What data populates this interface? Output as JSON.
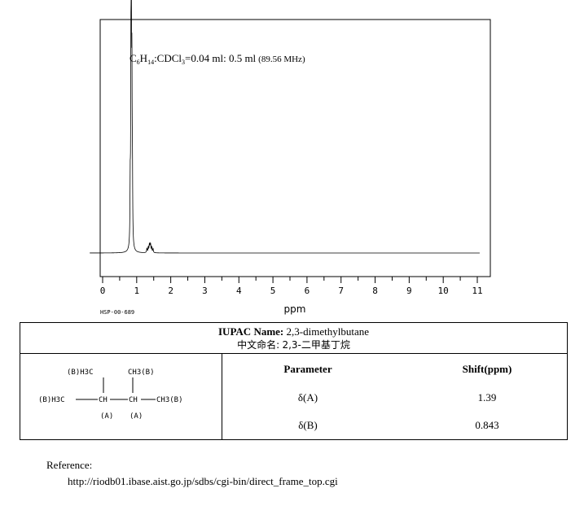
{
  "chart_data": {
    "type": "line",
    "title": "",
    "conditions": {
      "solute": "C6H14",
      "solute_base": "C",
      "solute_sub1": "6",
      "solute_mid": "H",
      "solute_sub2": "14",
      "solvent_text": ":CDCl",
      "solvent_sub": "3",
      "ratio_text": "=0.04 ml: 0.5 ml",
      "freq_text": "(89.56 MHz)"
    },
    "xlabel": "ppm",
    "ylabel": "",
    "xlim": [
      11,
      0
    ],
    "x_reversed": true,
    "xticks": [
      "11",
      "10",
      "9",
      "8",
      "7",
      "6",
      "5",
      "4",
      "3",
      "2",
      "1",
      "0"
    ],
    "baseline": 0.0,
    "ylim": [
      0,
      1.0
    ],
    "grid": false,
    "peaks": [
      {
        "shift": 0.843,
        "intensity": 1.0,
        "width": 0.02
      },
      {
        "shift": 0.83,
        "intensity": 0.68,
        "width": 0.015
      },
      {
        "shift": 0.86,
        "intensity": 0.67,
        "width": 0.015
      },
      {
        "shift": 0.875,
        "intensity": 0.3,
        "width": 0.015
      },
      {
        "shift": 0.81,
        "intensity": 0.25,
        "width": 0.015
      },
      {
        "shift": 1.3,
        "intensity": 0.02,
        "width": 0.02
      },
      {
        "shift": 1.34,
        "intensity": 0.025,
        "width": 0.02
      },
      {
        "shift": 1.37,
        "intensity": 0.03,
        "width": 0.02
      },
      {
        "shift": 1.39,
        "intensity": 0.035,
        "width": 0.02
      },
      {
        "shift": 1.41,
        "intensity": 0.03,
        "width": 0.02
      },
      {
        "shift": 1.44,
        "intensity": 0.025,
        "width": 0.02
      },
      {
        "shift": 1.48,
        "intensity": 0.02,
        "width": 0.02
      }
    ]
  },
  "spectrum_id": "HSP-00-689",
  "compound": {
    "iupac_label": "IUPAC Name:",
    "iupac_name": "2,3-dimethylbutane",
    "chinese_label": "中文命名:",
    "chinese_name": "2,3-二甲基丁烷"
  },
  "structure": {
    "top_left_group": "(B)H3C",
    "top_right_group": "CH3(B)",
    "left_group": "(B)H3C",
    "center_left": "CH",
    "center_right": "CH",
    "right_group": "CH3(B)",
    "label_a1": "(A)",
    "label_a2": "(A)"
  },
  "assignments": {
    "headers": [
      "Parameter",
      "Shift(ppm)"
    ],
    "rows": [
      {
        "parameter": "δ(A)",
        "shift": "1.39"
      },
      {
        "parameter": "δ(B)",
        "shift": "0.843"
      }
    ]
  },
  "reference": {
    "label": "Reference:",
    "url": "http://riodb01.ibase.aist.go.jp/sdbs/cgi-bin/direct_frame_top.cgi"
  }
}
